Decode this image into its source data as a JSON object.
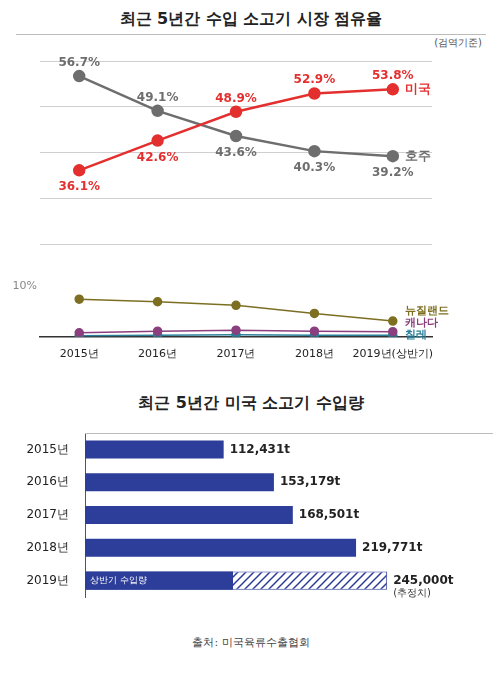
{
  "chart_data": [
    {
      "type": "line",
      "title": "최근 5년간 수입 소고기 시장 점유율",
      "subtitle": "(검역기준)",
      "categories": [
        "2015년",
        "2016년",
        "2017년",
        "2018년",
        "2019년(상반기)"
      ],
      "ylim": [
        20,
        60
      ],
      "yticks": [
        20,
        30,
        40,
        50,
        60
      ],
      "grid": true,
      "tick_labels": false,
      "series": [
        {
          "name": "미국",
          "color": "#e3302f",
          "marker": "circle",
          "data_labels": true,
          "values": [
            36.1,
            42.6,
            48.9,
            52.9,
            53.8
          ],
          "value_labels": [
            "36.1%",
            "42.6%",
            "48.9%",
            "52.9%",
            "53.8%"
          ]
        },
        {
          "name": "호주",
          "color": "#6e6e6e",
          "marker": "circle",
          "data_labels": true,
          "values": [
            56.7,
            49.1,
            43.6,
            40.3,
            39.2
          ],
          "value_labels": [
            "56.7%",
            "49.1%",
            "43.6%",
            "40.3%",
            "39.2%"
          ]
        }
      ]
    },
    {
      "type": "line",
      "categories": [
        "2015년",
        "2016년",
        "2017년",
        "2018년",
        "2019년(상반기)"
      ],
      "ylim": [
        0,
        10
      ],
      "yticks": [
        {
          "value": 10,
          "label": "10%"
        }
      ],
      "grid": false,
      "series": [
        {
          "name": "뉴질랜드",
          "color": "#7d6f22",
          "marker": "circle",
          "values": [
            7.4,
            6.9,
            6.2,
            4.6,
            3.1
          ]
        },
        {
          "name": "캐나다",
          "color": "#8b3f7e",
          "marker": "circle",
          "values": [
            0.8,
            1.1,
            1.3,
            1.1,
            1.0
          ]
        },
        {
          "name": "칠레",
          "color": "#2b7f98",
          "marker": "circle",
          "values": [
            0.2,
            0.3,
            0.4,
            0.3,
            0.3
          ]
        }
      ]
    },
    {
      "type": "bar",
      "orientation": "horizontal",
      "title": "최근 5년간 미국 소고기 수입량",
      "categories": [
        "2015년",
        "2016년",
        "2017년",
        "2018년",
        "2019년"
      ],
      "values": [
        112431,
        153179,
        168501,
        219771,
        245000
      ],
      "value_labels": [
        "112,431t",
        "153,179t",
        "168,501t",
        "219,771t",
        "245,000t"
      ],
      "data_labels": true,
      "color": "#2c3d9a",
      "xlim": [
        0,
        330000
      ],
      "tick_labels": "y",
      "grid": false,
      "series": [
        {
          "name": "상반기 수입량",
          "color": "#2c3d9a",
          "values": [
            null,
            null,
            null,
            null,
            120000
          ]
        }
      ],
      "annotations": [
        {
          "text": "(추정치)",
          "category": "2019년"
        }
      ]
    }
  ],
  "source": "출처: 미국육류수출협회"
}
